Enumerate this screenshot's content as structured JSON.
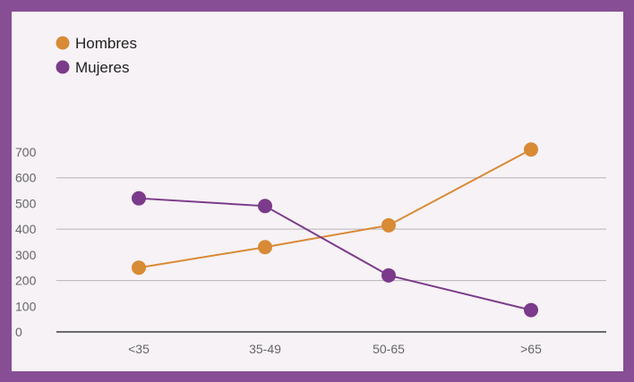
{
  "chart_data": {
    "type": "line",
    "title": "",
    "xlabel": "",
    "ylabel": "",
    "categories": [
      "<35",
      "35-49",
      "50-65",
      ">65"
    ],
    "ylim": [
      0,
      700
    ],
    "yticks": [
      0,
      100,
      200,
      300,
      400,
      500,
      600,
      700
    ],
    "grid": true,
    "legend_placement": "top-left",
    "series": [
      {
        "name": "Hombres",
        "color": "#d88a35",
        "values": [
          250,
          330,
          415,
          710
        ]
      },
      {
        "name": "Mujeres",
        "color": "#7b3a8a",
        "values": [
          520,
          490,
          220,
          85
        ]
      }
    ]
  }
}
